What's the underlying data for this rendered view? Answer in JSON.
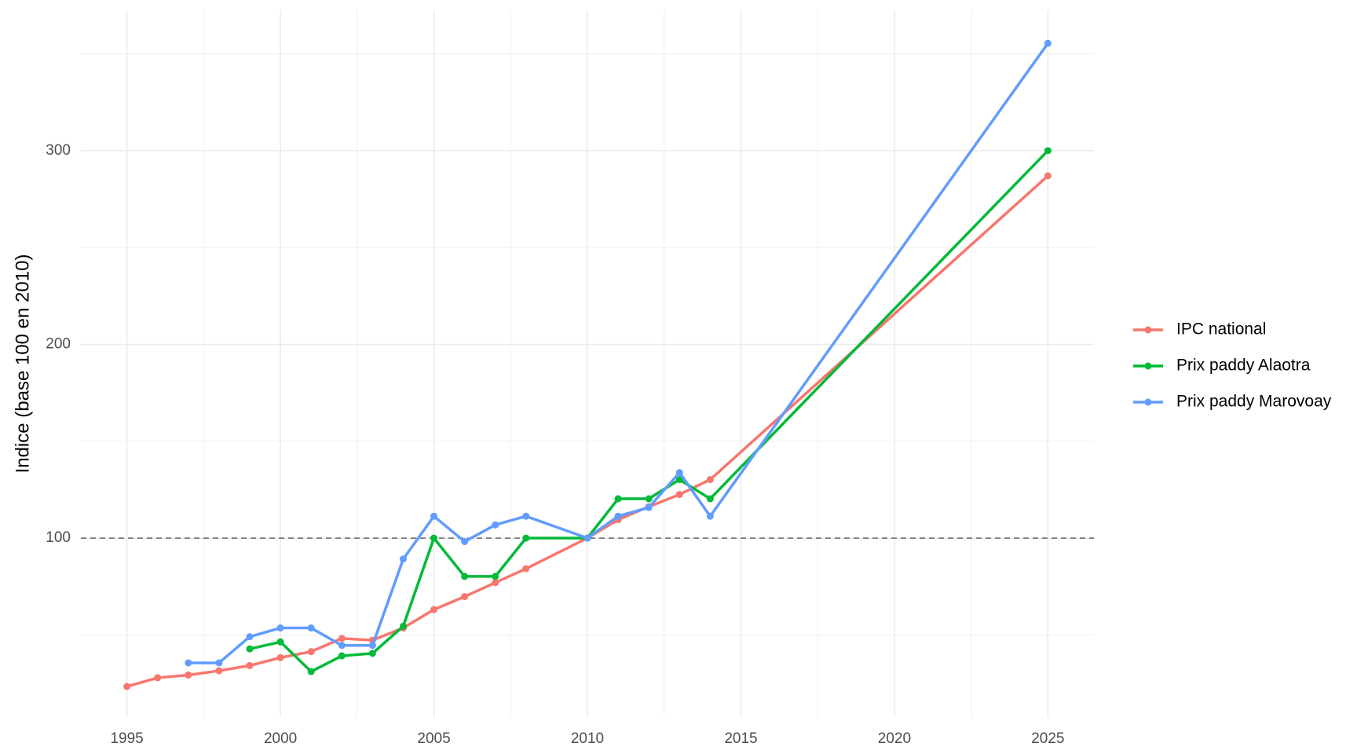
{
  "chart_data": {
    "type": "line",
    "y_label": "Indice (base 100 en 2010)",
    "x": [
      1995,
      1996,
      1997,
      1998,
      1999,
      2000,
      2001,
      2002,
      2003,
      2004,
      2005,
      2006,
      2007,
      2008,
      2010,
      2011,
      2012,
      2013,
      2014,
      2025
    ],
    "series": [
      {
        "name": "IPC national",
        "color": "#f8766d",
        "values": [
          23.4,
          27.9,
          29.3,
          31.5,
          34.2,
          38.3,
          41.4,
          48.2,
          47.3,
          53.6,
          63.1,
          69.8,
          77.0,
          84.2,
          100,
          109.5,
          116.2,
          122.5,
          130.2,
          287
        ]
      },
      {
        "name": "Prix paddy Alaotra",
        "color": "#00ba38",
        "values": [
          null,
          null,
          null,
          null,
          42.8,
          46.4,
          31.1,
          39.2,
          40.5,
          54.5,
          100,
          80.2,
          80.2,
          100,
          100,
          120.3,
          120.3,
          130.2,
          120.3,
          300
        ]
      },
      {
        "name": "Prix paddy Marovoay",
        "color": "#619cff",
        "values": [
          null,
          null,
          35.6,
          35.6,
          49.1,
          53.6,
          53.6,
          44.6,
          44.6,
          89.2,
          111.3,
          98.2,
          106.8,
          111.3,
          100,
          111.3,
          115.8,
          133.8,
          111.3,
          355.4
        ]
      }
    ],
    "xlim": [
      1993.5,
      2026.5
    ],
    "ylim": [
      7.6,
      372.5
    ],
    "xticks": [
      1995,
      2000,
      2005,
      2010,
      2015,
      2020,
      2025
    ],
    "x_minor_ticks": [
      1997.5,
      2002.5,
      2007.5,
      2012.5,
      2017.5,
      2022.5
    ],
    "yticks": [
      100,
      200,
      300
    ],
    "y_minor_ticks": [
      50,
      150,
      250,
      350
    ],
    "hline": 100,
    "grid": true,
    "legend_position": "right"
  }
}
